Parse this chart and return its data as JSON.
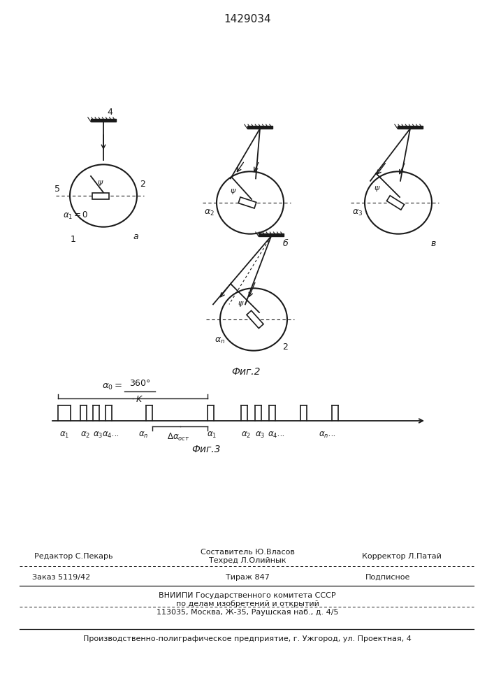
{
  "title": "1429034",
  "fig2_label": "Фиг.2",
  "fig3_label": "Фиг.3",
  "line_color": "#1a1a1a",
  "footer": {
    "editor": "Редактор С.Пекарь",
    "composer": "Составитель Ю.Власов",
    "tech": "Техред Л.Олийнык",
    "corrector": "Корректор Л.Патай",
    "order": "Заказ 5119/42",
    "tirazh": "Тираж 847",
    "podpisnoe": "Подписное",
    "vniipи": "ВНИИПИ Государственного комитета СССР",
    "po_delam": "по делам изобретений и открытий",
    "address": "113035, Москва, Ж-35, Раушская наб., д. 4/5",
    "production": "Производственно-полиграфическое предприятие, г. Ужгород, ул. Проектная, 4"
  }
}
